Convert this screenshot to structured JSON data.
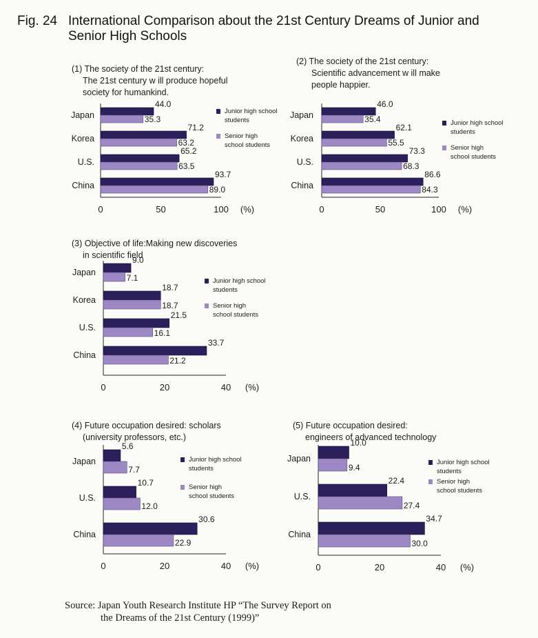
{
  "figure": {
    "title_number": "Fig. 24",
    "title_line1": "International Comparison about the 21st Century Dreams of Junior and",
    "title_line2": "Senior High Schools"
  },
  "colors": {
    "junior": "#2b1f5c",
    "senior": "#9e88c4"
  },
  "legend": {
    "junior_line1": "Junior high school",
    "junior_line2": "students",
    "senior_line1": "Senior  high",
    "senior_line2": "school students"
  },
  "panels": [
    {
      "title_lines": [
        "(1) The society of the 21st century:",
        "The 21st century w ill produce hopeful",
        "society for humankind."
      ]
    },
    {
      "title_lines": [
        "(2) The society of the 21st century:",
        "Scientific advancement w ill make",
        "people happier."
      ]
    },
    {
      "title_lines": [
        "(3) Objective of life:Making new discoveries",
        "in scientific field"
      ]
    },
    {
      "title_lines": [
        "(4) Future occupation desired:  scholars",
        "(university professors, etc.)"
      ]
    },
    {
      "title_lines": [
        "(5) Future occupation desired:",
        "engineers of advanced technology"
      ]
    }
  ],
  "chart_data": [
    {
      "type": "bar",
      "orientation": "horizontal",
      "categories": [
        "Japan",
        "Korea",
        "U.S.",
        "China"
      ],
      "series": [
        {
          "name": "Junior high school students",
          "values": [
            44.0,
            71.2,
            65.2,
            93.7
          ],
          "labels": [
            "44.0",
            "71.2",
            "65.2",
            "93.7"
          ]
        },
        {
          "name": "Senior high school students",
          "values": [
            35.3,
            63.2,
            63.5,
            89.0
          ],
          "labels": [
            "35.3",
            "63.2",
            "63.5",
            "89.0"
          ]
        }
      ],
      "xlim": [
        0,
        100
      ],
      "xticks": [
        "0",
        "50",
        "100"
      ],
      "unit": "(%)",
      "legend_position": "right"
    },
    {
      "type": "bar",
      "orientation": "horizontal",
      "categories": [
        "Japan",
        "Korea",
        "U.S.",
        "China"
      ],
      "series": [
        {
          "name": "Junior high school students",
          "values": [
            46.0,
            62.1,
            73.3,
            86.6
          ],
          "labels": [
            "46.0",
            "62.1",
            "73.3",
            "86.6"
          ]
        },
        {
          "name": "Senior high school students",
          "values": [
            35.4,
            55.5,
            68.3,
            84.3
          ],
          "labels": [
            "35.4",
            "55.5",
            "68.3",
            "84.3"
          ]
        }
      ],
      "xlim": [
        0,
        100
      ],
      "xticks": [
        "0",
        "50",
        "100"
      ],
      "unit": "(%)",
      "legend_position": "right"
    },
    {
      "type": "bar",
      "orientation": "horizontal",
      "categories": [
        "Japan",
        "Korea",
        "U.S.",
        "China"
      ],
      "series": [
        {
          "name": "Junior high school students",
          "values": [
            9.0,
            18.7,
            21.5,
            33.7
          ],
          "labels": [
            "9.0",
            "18.7",
            "21.5",
            "33.7"
          ]
        },
        {
          "name": "Senior high school students",
          "values": [
            7.1,
            18.7,
            16.1,
            21.2
          ],
          "labels": [
            "7.1",
            "18.7",
            "16.1",
            "21.2"
          ]
        }
      ],
      "xlim": [
        0,
        40
      ],
      "xticks": [
        "0",
        "20",
        "40"
      ],
      "unit": "(%)",
      "legend_position": "right"
    },
    {
      "type": "bar",
      "orientation": "horizontal",
      "categories": [
        "Japan",
        "U.S.",
        "China"
      ],
      "series": [
        {
          "name": "Junior high school students",
          "values": [
            5.6,
            10.7,
            30.6
          ],
          "labels": [
            "5.6",
            "10.7",
            "30.6"
          ]
        },
        {
          "name": "Senior high school students",
          "values": [
            7.7,
            12.0,
            22.9
          ],
          "labels": [
            "7.7",
            "12.0",
            "22.9"
          ]
        }
      ],
      "xlim": [
        0,
        40
      ],
      "xticks": [
        "0",
        "20",
        "40"
      ],
      "unit": "(%)",
      "legend_position": "right"
    },
    {
      "type": "bar",
      "orientation": "horizontal",
      "categories": [
        "Japan",
        "U.S.",
        "China"
      ],
      "series": [
        {
          "name": "Junior high school students",
          "values": [
            10.0,
            22.4,
            34.7
          ],
          "labels": [
            "10.0",
            "22.4",
            "34.7"
          ]
        },
        {
          "name": "Senior high school students",
          "values": [
            9.4,
            27.4,
            30.0
          ],
          "labels": [
            "9.4",
            "27.4",
            "30.0"
          ]
        }
      ],
      "xlim": [
        0,
        40
      ],
      "xticks": [
        "0",
        "20",
        "40"
      ],
      "unit": "(%)",
      "legend_position": "right"
    }
  ],
  "source": {
    "line1": "Source: Japan Youth Research Institute HP “The Survey Report on",
    "line2": "the Dreams of the 21st Century (1999)”"
  }
}
